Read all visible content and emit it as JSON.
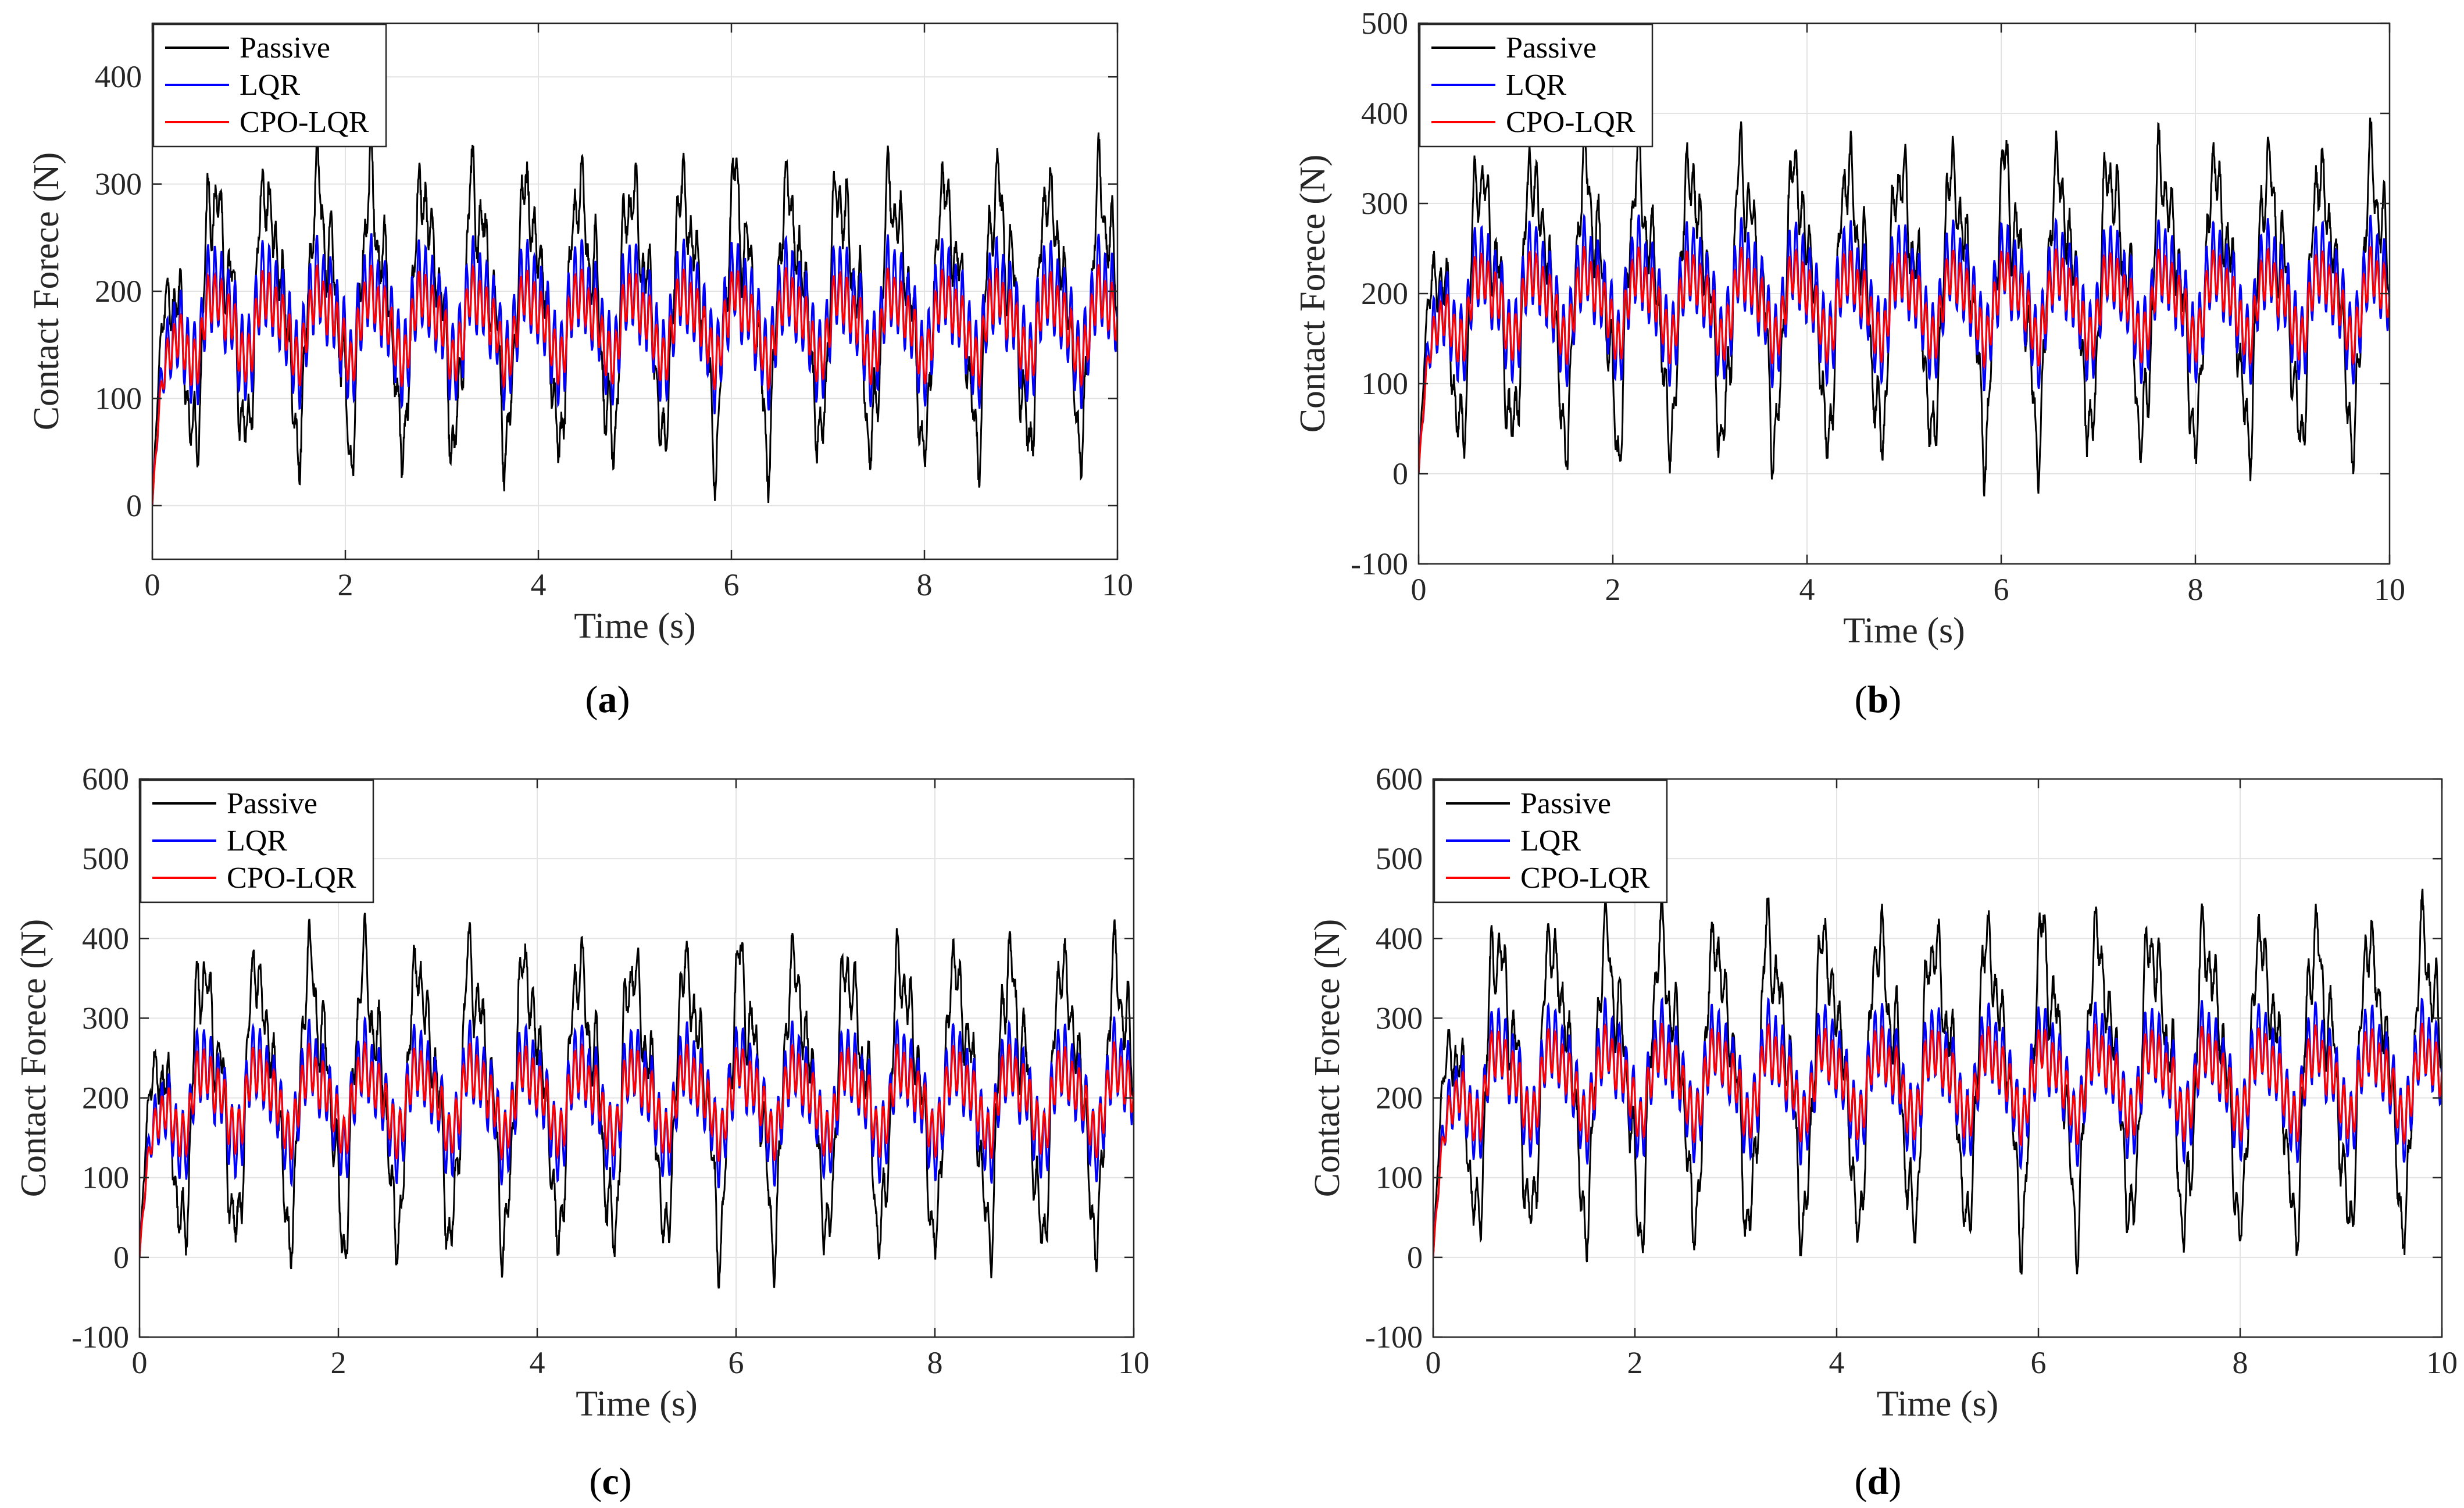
{
  "chart_data": [
    {
      "type": "line",
      "panel": "a",
      "caption": {
        "open": "(",
        "letter": "a",
        "close": ")"
      },
      "xlabel": "Time (s)",
      "ylabel": "Contact Forece (N)",
      "xlim": [
        0,
        10
      ],
      "ylim": [
        -50,
        450
      ],
      "xticks": [
        0,
        2,
        4,
        6,
        8,
        10
      ],
      "yticks": [
        0,
        100,
        200,
        300,
        400
      ],
      "grid": true,
      "legend_position": "top-left",
      "series": [
        {
          "name": "Passive",
          "color": "#000000",
          "mean": 190,
          "amp": 140,
          "hf": 22,
          "noise": 70
        },
        {
          "name": "LQR",
          "color": "#0000ff",
          "mean": 175,
          "amp": 45,
          "hf": 40,
          "noise": 15
        },
        {
          "name": "CPO-LQR",
          "color": "#ff0000",
          "mean": 170,
          "amp": 38,
          "hf": 22,
          "noise": 10
        }
      ]
    },
    {
      "type": "line",
      "panel": "b",
      "caption": {
        "open": "(",
        "letter": "b",
        "close": ")"
      },
      "xlabel": "Time (s)",
      "ylabel": "Contact Forece (N)",
      "xlim": [
        0,
        10
      ],
      "ylim": [
        -100,
        500
      ],
      "xticks": [
        0,
        2,
        4,
        6,
        8,
        10
      ],
      "yticks": [
        -100,
        0,
        100,
        200,
        300,
        400,
        500
      ],
      "grid": true,
      "legend_position": "top-left",
      "series": [
        {
          "name": "Passive",
          "color": "#000000",
          "mean": 205,
          "amp": 175,
          "hf": 28,
          "noise": 75
        },
        {
          "name": "LQR",
          "color": "#0000ff",
          "mean": 195,
          "amp": 55,
          "hf": 45,
          "noise": 15
        },
        {
          "name": "CPO-LQR",
          "color": "#ff0000",
          "mean": 190,
          "amp": 45,
          "hf": 25,
          "noise": 10
        }
      ]
    },
    {
      "type": "line",
      "panel": "c",
      "caption": {
        "open": "(",
        "letter": "c",
        "close": ")"
      },
      "xlabel": "Time (s)",
      "ylabel": "Contact Forece (N)",
      "xlim": [
        0,
        10
      ],
      "ylim": [
        -100,
        600
      ],
      "xticks": [
        0,
        2,
        4,
        6,
        8,
        10
      ],
      "yticks": [
        -100,
        0,
        100,
        200,
        300,
        400,
        500,
        600
      ],
      "grid": true,
      "legend_position": "top-left",
      "series": [
        {
          "name": "Passive",
          "color": "#000000",
          "mean": 215,
          "amp": 200,
          "hf": 30,
          "noise": 80
        },
        {
          "name": "LQR",
          "color": "#0000ff",
          "mean": 200,
          "amp": 65,
          "hf": 45,
          "noise": 18
        },
        {
          "name": "CPO-LQR",
          "color": "#ff0000",
          "mean": 200,
          "amp": 50,
          "hf": 28,
          "noise": 12
        }
      ]
    },
    {
      "type": "line",
      "panel": "d",
      "caption": {
        "open": "(",
        "letter": "d",
        "close": ")"
      },
      "xlabel": "Time (s)",
      "ylabel": "Contact Forece (N)",
      "xlim": [
        0,
        10
      ],
      "ylim": [
        -100,
        600
      ],
      "xticks": [
        0,
        2,
        4,
        6,
        8,
        10
      ],
      "yticks": [
        -100,
        0,
        100,
        200,
        300,
        400,
        500,
        600
      ],
      "grid": true,
      "legend_position": "top-left",
      "series": [
        {
          "name": "Passive",
          "color": "#000000",
          "mean": 240,
          "amp": 210,
          "hf": 30,
          "noise": 80
        },
        {
          "name": "LQR",
          "color": "#0000ff",
          "mean": 225,
          "amp": 65,
          "hf": 45,
          "noise": 18
        },
        {
          "name": "CPO-LQR",
          "color": "#ff0000",
          "mean": 222,
          "amp": 52,
          "hf": 28,
          "noise": 12
        }
      ]
    }
  ]
}
